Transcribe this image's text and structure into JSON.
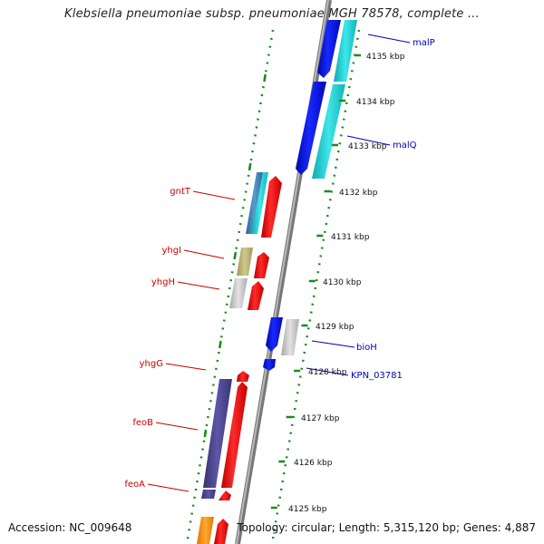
{
  "title": "Klebsiella pneumoniae subsp. pneumoniae MGH 78578, complete ...",
  "accession": "Accession: NC_009648",
  "topology": "Topology: circular; Length: 5,315,120 bp; Genes: 4,887",
  "scale": {
    "unit": "kbp",
    "ticks": [
      "4135 kbp",
      "4134 kbp",
      "4133 kbp",
      "4132 kbp",
      "4131 kbp",
      "4130 kbp",
      "4129 kbp",
      "4128 kbp",
      "4127 kbp",
      "4126 kbp",
      "4125 kbp"
    ]
  },
  "genes": {
    "forward": [
      {
        "label": "gntT",
        "color": "#cc0000"
      },
      {
        "label": "yhgI",
        "color": "#cc0000"
      },
      {
        "label": "yhgH",
        "color": "#cc0000"
      },
      {
        "label": "yhgG",
        "color": "#cc0000"
      },
      {
        "label": "feoB",
        "color": "#cc0000"
      },
      {
        "label": "feoA",
        "color": "#cc0000"
      }
    ],
    "reverse": [
      {
        "label": "malP",
        "color": "#0000bb"
      },
      {
        "label": "malQ",
        "color": "#0000bb"
      },
      {
        "label": "bioH",
        "color": "#0000bb"
      },
      {
        "label": "KPN_03781",
        "color": "#0000bb"
      }
    ]
  },
  "colors": {
    "forward_cds": "#ff1a1a",
    "reverse_cds": "#0a18e8",
    "cyan_feature": "#22d4d8",
    "steelblue_feature": "#3e7fb0",
    "khaki_feature": "#bdb878",
    "gray_feature": "#c4c4c4",
    "purple_feature": "#4e4894",
    "orange_feature": "#ff8c00",
    "backbone": "#8a8a8a",
    "dotted_guides": "#1a8c1a"
  }
}
